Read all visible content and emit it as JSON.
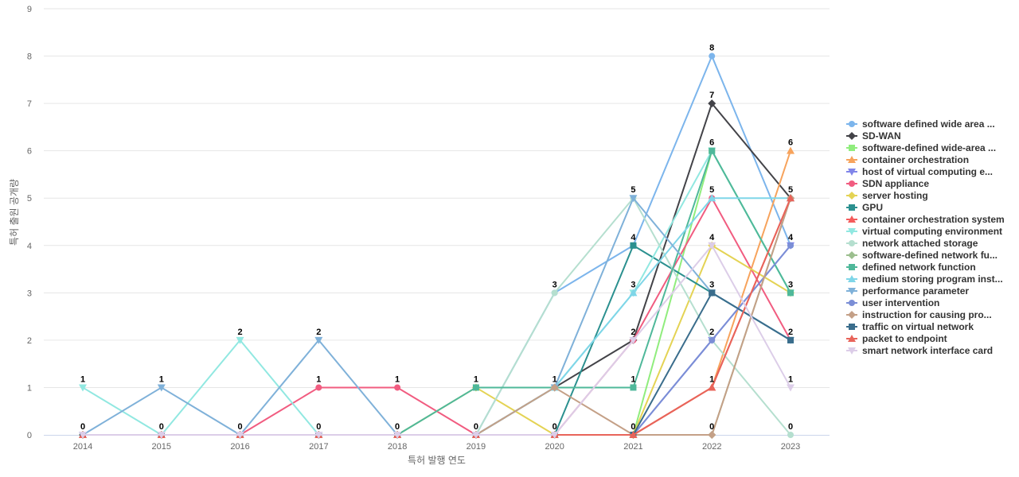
{
  "chart_data": {
    "type": "line",
    "title": "",
    "xlabel": "특허 발행 연도",
    "ylabel": "특허 출원 공개량",
    "ylim": [
      0,
      9
    ],
    "yticks": [
      0,
      1,
      2,
      3,
      4,
      5,
      6,
      7,
      8,
      9
    ],
    "categories": [
      "2014",
      "2015",
      "2016",
      "2017",
      "2018",
      "2019",
      "2020",
      "2021",
      "2022",
      "2023"
    ],
    "legend_position": "right",
    "series": [
      {
        "name": "software defined wide area ...",
        "color": "#7cb5ec",
        "marker": "circle",
        "values": [
          0,
          0,
          0,
          0,
          0,
          0,
          3,
          4,
          8,
          4
        ]
      },
      {
        "name": "SD-WAN",
        "color": "#434348",
        "marker": "diamond",
        "values": [
          0,
          0,
          0,
          0,
          0,
          0,
          1,
          2,
          7,
          5
        ]
      },
      {
        "name": "software-defined wide-area ...",
        "color": "#90ed7d",
        "marker": "square",
        "values": [
          0,
          0,
          0,
          0,
          0,
          0,
          0,
          0,
          6,
          3
        ]
      },
      {
        "name": "container orchestration",
        "color": "#f7a35c",
        "marker": "triangle",
        "values": [
          0,
          0,
          0,
          0,
          0,
          0,
          0,
          0,
          1,
          6
        ]
      },
      {
        "name": "host of virtual computing e...",
        "color": "#8085e9",
        "marker": "triangle-down",
        "values": [
          0,
          0,
          0,
          0,
          0,
          0,
          0,
          0,
          2,
          4
        ]
      },
      {
        "name": "SDN appliance",
        "color": "#f15c80",
        "marker": "circle",
        "values": [
          0,
          0,
          0,
          1,
          1,
          0,
          0,
          2,
          5,
          2
        ]
      },
      {
        "name": "server hosting",
        "color": "#e4d354",
        "marker": "diamond",
        "values": [
          0,
          0,
          0,
          0,
          0,
          1,
          0,
          0,
          4,
          3
        ]
      },
      {
        "name": "GPU",
        "color": "#2b908f",
        "marker": "square",
        "values": [
          0,
          0,
          0,
          0,
          0,
          0,
          0,
          4,
          3,
          2
        ]
      },
      {
        "name": "container orchestration system",
        "color": "#f45b5b",
        "marker": "triangle",
        "values": [
          0,
          0,
          0,
          0,
          0,
          0,
          0,
          0,
          1,
          5
        ]
      },
      {
        "name": "virtual computing environment",
        "color": "#91e8e1",
        "marker": "triangle-down",
        "values": [
          1,
          0,
          2,
          0,
          0,
          0,
          1,
          3,
          6,
          3
        ]
      },
      {
        "name": "network attached storage",
        "color": "#b5dfcf",
        "marker": "circle",
        "values": [
          0,
          0,
          0,
          0,
          0,
          0,
          3,
          5,
          2,
          0
        ]
      },
      {
        "name": "software-defined network fu...",
        "color": "#9cbf8f",
        "marker": "diamond",
        "values": [
          0,
          0,
          0,
          0,
          0,
          0,
          0,
          0,
          0,
          5
        ]
      },
      {
        "name": "defined network function",
        "color": "#4fb89a",
        "marker": "square",
        "values": [
          0,
          0,
          0,
          0,
          0,
          1,
          1,
          1,
          6,
          3
        ]
      },
      {
        "name": "medium storing program inst...",
        "color": "#7fd6e8",
        "marker": "triangle",
        "values": [
          0,
          0,
          0,
          0,
          0,
          0,
          1,
          3,
          5,
          5
        ]
      },
      {
        "name": "performance parameter",
        "color": "#7fb1d9",
        "marker": "triangle-down",
        "values": [
          0,
          1,
          0,
          2,
          0,
          0,
          1,
          5,
          3,
          2
        ]
      },
      {
        "name": "user intervention",
        "color": "#7b8ed6",
        "marker": "circle",
        "values": [
          0,
          0,
          0,
          0,
          0,
          0,
          0,
          0,
          2,
          4
        ]
      },
      {
        "name": "instruction for causing pro...",
        "color": "#c4a087",
        "marker": "diamond",
        "values": [
          0,
          0,
          0,
          0,
          0,
          0,
          1,
          0,
          0,
          5
        ]
      },
      {
        "name": "traffic on virtual network",
        "color": "#3a6d8c",
        "marker": "square",
        "values": [
          0,
          0,
          0,
          0,
          0,
          0,
          0,
          0,
          3,
          2
        ]
      },
      {
        "name": "packet to endpoint",
        "color": "#e8645a",
        "marker": "triangle",
        "values": [
          0,
          0,
          0,
          0,
          0,
          0,
          0,
          0,
          1,
          5
        ]
      },
      {
        "name": "smart network interface card",
        "color": "#dccde8",
        "marker": "triangle-down",
        "values": [
          0,
          0,
          0,
          0,
          0,
          0,
          0,
          2,
          4,
          1
        ]
      }
    ],
    "data_labels": [
      {
        "x": "2014",
        "text": "1",
        "value": 1
      },
      {
        "x": "2014",
        "text": "0",
        "value": 0
      },
      {
        "x": "2015",
        "text": "1",
        "value": 1
      },
      {
        "x": "2015",
        "text": "0",
        "value": 0
      },
      {
        "x": "2016",
        "text": "2",
        "value": 2
      },
      {
        "x": "2016",
        "text": "0",
        "value": 0
      },
      {
        "x": "2017",
        "text": "2",
        "value": 2
      },
      {
        "x": "2017",
        "text": "1",
        "value": 1
      },
      {
        "x": "2017",
        "text": "0",
        "value": 0
      },
      {
        "x": "2018",
        "text": "1",
        "value": 1
      },
      {
        "x": "2018",
        "text": "0",
        "value": 0
      },
      {
        "x": "2019",
        "text": "1",
        "value": 1
      },
      {
        "x": "2019",
        "text": "0",
        "value": 0
      },
      {
        "x": "2020",
        "text": "3",
        "value": 3
      },
      {
        "x": "2020",
        "text": "1",
        "value": 1
      },
      {
        "x": "2020",
        "text": "0",
        "value": 0
      },
      {
        "x": "2021",
        "text": "5",
        "value": 5
      },
      {
        "x": "2021",
        "text": "4",
        "value": 4
      },
      {
        "x": "2021",
        "text": "3",
        "value": 3
      },
      {
        "x": "2021",
        "text": "2",
        "value": 2
      },
      {
        "x": "2021",
        "text": "1",
        "value": 1
      },
      {
        "x": "2021",
        "text": "0",
        "value": 0
      },
      {
        "x": "2022",
        "text": "8",
        "value": 8
      },
      {
        "x": "2022",
        "text": "7",
        "value": 7
      },
      {
        "x": "2022",
        "text": "6",
        "value": 6
      },
      {
        "x": "2022",
        "text": "5",
        "value": 5
      },
      {
        "x": "2022",
        "text": "4",
        "value": 4
      },
      {
        "x": "2022",
        "text": "3",
        "value": 3
      },
      {
        "x": "2022",
        "text": "2",
        "value": 2
      },
      {
        "x": "2022",
        "text": "1",
        "value": 1
      },
      {
        "x": "2022",
        "text": "0",
        "value": 0
      },
      {
        "x": "2023",
        "text": "6",
        "value": 6
      },
      {
        "x": "2023",
        "text": "5",
        "value": 5
      },
      {
        "x": "2023",
        "text": "4",
        "value": 4
      },
      {
        "x": "2023",
        "text": "3",
        "value": 3
      },
      {
        "x": "2023",
        "text": "2",
        "value": 2
      },
      {
        "x": "2023",
        "text": "1",
        "value": 1
      },
      {
        "x": "2023",
        "text": "0",
        "value": 0
      }
    ]
  }
}
